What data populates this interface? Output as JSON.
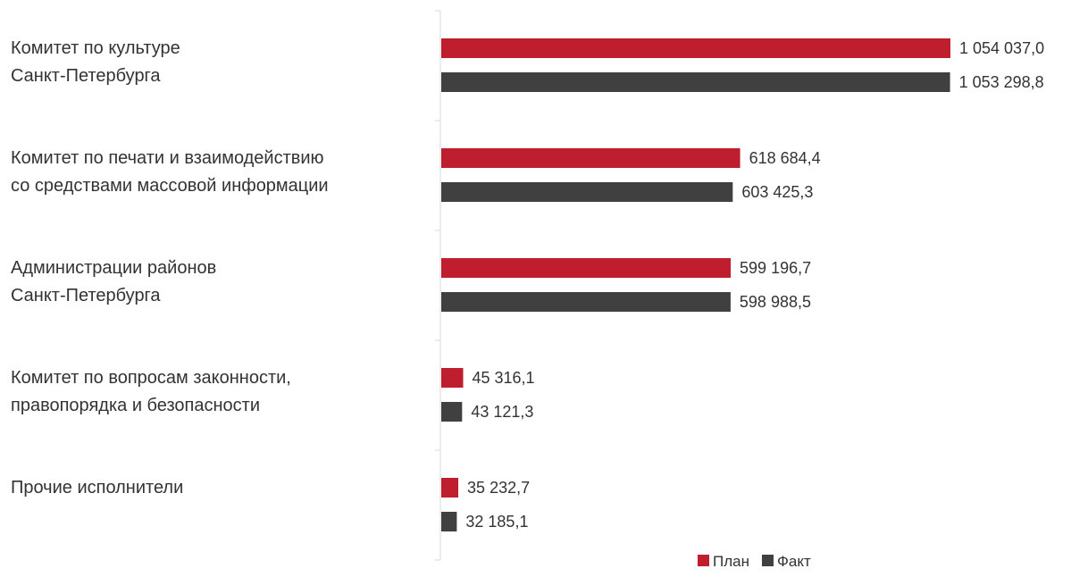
{
  "chart_data": {
    "type": "bar",
    "orientation": "horizontal",
    "title": "",
    "xlabel": "",
    "ylabel": "",
    "categories": [
      [
        "Комитет по культуре",
        "Санкт-Петербурга"
      ],
      [
        "Комитет по печати и взаимодействию",
        "со средствами массовой информации"
      ],
      [
        "Администрации районов",
        "Санкт-Петербурга"
      ],
      [
        "Комитет по вопросам законности,",
        "правопорядка и безопасности"
      ],
      [
        "Прочие исполнители"
      ]
    ],
    "series": [
      {
        "name": "План",
        "color": "#be1e2d",
        "values": [
          1054037.0,
          618684.4,
          599196.7,
          45316.1,
          35232.7
        ],
        "labels": [
          "1 054 037,0",
          "618 684,4",
          "599 196,7",
          "45 316,1",
          "35 232,7"
        ]
      },
      {
        "name": "Факт",
        "color": "#404040",
        "values": [
          1053298.8,
          603425.3,
          598988.5,
          43121.3,
          32185.1
        ],
        "labels": [
          "1 053 298,8",
          "603 425,3",
          "598 988,5",
          "43 121,3",
          "32 185,1"
        ]
      }
    ],
    "xlim": [
      0,
      1054037.0
    ],
    "grid": false,
    "legend_position": "bottom-right"
  }
}
